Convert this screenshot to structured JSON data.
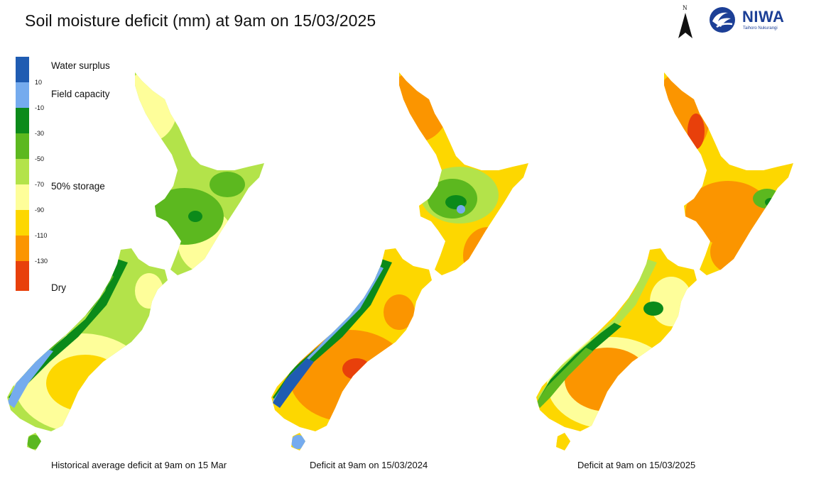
{
  "title": "Soil moisture deficit (mm) at  9am on 15/03/2025",
  "north_label": "N",
  "logo": {
    "name": "NIWA",
    "subtitle": "Taihoro Nukurangi",
    "color": "#1c3f96"
  },
  "legend": {
    "labels": {
      "water_surplus": "Water surplus",
      "field_capacity": "Field capacity",
      "storage": "50% storage",
      "dry": "Dry"
    },
    "ticks": [
      "10",
      "-10",
      "-30",
      "-50",
      "-70",
      "-90",
      "-110",
      "-130"
    ],
    "colors": [
      "#1f5cb2",
      "#75abee",
      "#0b8a1a",
      "#5cb81f",
      "#b3e34a",
      "#fefe9a",
      "#fdd700",
      "#fb9500",
      "#e8400b"
    ]
  },
  "maps": [
    {
      "caption": "Historical average deficit at 9am on 15 Mar",
      "scheme": "historical"
    },
    {
      "caption": "Deficit at  9am on 15/03/2024",
      "scheme": "y2024"
    },
    {
      "caption": "Deficit at  9am on 15/03/2025",
      "scheme": "y2025"
    }
  ]
}
